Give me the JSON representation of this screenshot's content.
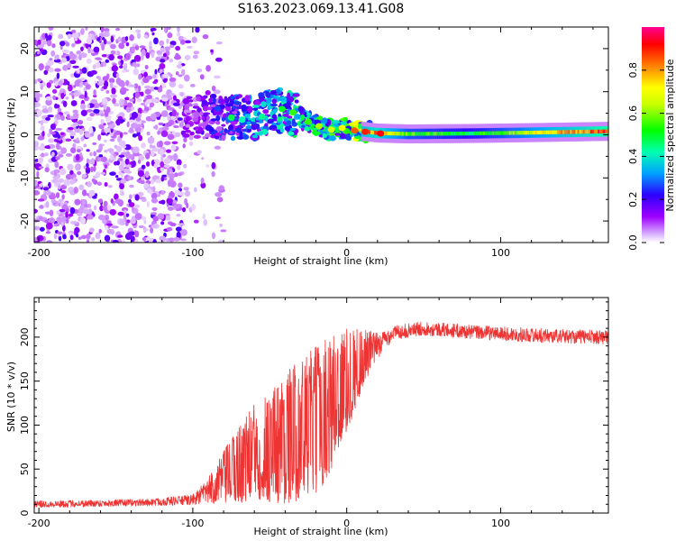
{
  "title": "S163.2023.069.13.41.G08",
  "chart_data": [
    {
      "type": "heatmap",
      "name": "spectrogram",
      "xlabel": "Height of straight line (km)",
      "ylabel": "Frequency (Hz)",
      "xlim": [
        -203,
        170
      ],
      "ylim": [
        -25,
        25
      ],
      "xticks": [
        -200,
        -100,
        0,
        100
      ],
      "yticks": [
        -20,
        -10,
        0,
        10,
        20
      ],
      "colorbar": {
        "label": "Normalized spectral amplitude",
        "range": [
          0.0,
          1.0
        ],
        "ticks": [
          "0.0",
          "0.2",
          "0.4",
          "0.6",
          "0.8"
        ],
        "colormap": [
          "#ffffff",
          "#9f00ff",
          "#2c00ff",
          "#00a0ff",
          "#00ffb0",
          "#00ff00",
          "#c8ff00",
          "#ffff00",
          "#ff8000",
          "#ff0000",
          "#ff0090"
        ]
      },
      "ridge": {
        "description": "dominant frequency vs height",
        "height_km": [
          -100,
          -80,
          -60,
          -45,
          -35,
          -25,
          -15,
          -5,
          0,
          10,
          20,
          40,
          80,
          120,
          170
        ],
        "frequency_hz": [
          4,
          4,
          4,
          6,
          5,
          3,
          1.5,
          1,
          1.5,
          0.8,
          0.4,
          0.2,
          0.3,
          0.5,
          0.8
        ],
        "amplitude": [
          0.15,
          0.3,
          0.4,
          0.45,
          0.5,
          0.5,
          0.6,
          0.6,
          0.65,
          0.8,
          0.85,
          0.6,
          0.5,
          0.7,
          0.95
        ]
      }
    },
    {
      "type": "line",
      "name": "snr",
      "xlabel": "Height of straight line (km)",
      "ylabel": "SNR (10 * v/v)",
      "xlim": [
        -203,
        170
      ],
      "ylim": [
        0,
        245
      ],
      "xticks": [
        -200,
        -100,
        0,
        100
      ],
      "yticks": [
        0,
        50,
        100,
        150,
        200
      ],
      "color": "#ee3333",
      "envelope": {
        "height_km": [
          -203,
          -130,
          -100,
          -90,
          -80,
          -70,
          -60,
          -50,
          -40,
          -30,
          -20,
          -10,
          0,
          10,
          20,
          30,
          50,
          80,
          110,
          140,
          170
        ],
        "snr_mean": [
          10,
          12,
          15,
          25,
          40,
          55,
          70,
          75,
          85,
          95,
          105,
          125,
          150,
          175,
          190,
          205,
          210,
          206,
          203,
          201,
          200
        ],
        "snr_spread": [
          4,
          4,
          6,
          15,
          30,
          45,
          55,
          65,
          75,
          80,
          85,
          80,
          60,
          35,
          15,
          8,
          8,
          8,
          8,
          8,
          8
        ]
      }
    }
  ]
}
